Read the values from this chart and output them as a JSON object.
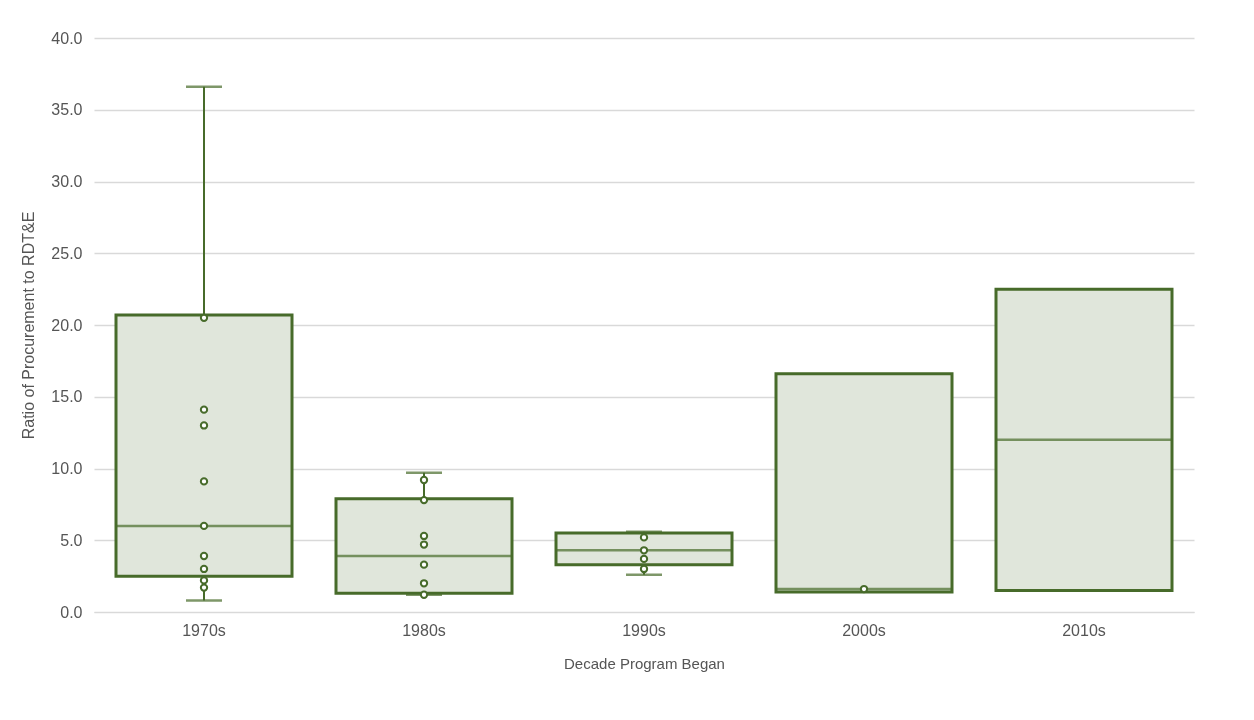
{
  "chart_data": {
    "type": "box",
    "xlabel": "Decade Program Began",
    "ylabel": "Ratio of Procurement to RDT&E",
    "categories": [
      "1970s",
      "1980s",
      "1990s",
      "2000s",
      "2010s"
    ],
    "ylim": [
      0,
      40
    ],
    "yticks": [
      {
        "value": 0,
        "label": "0.0"
      },
      {
        "value": 5,
        "label": "5.0"
      },
      {
        "value": 10,
        "label": "10.0"
      },
      {
        "value": 15,
        "label": "15.0"
      },
      {
        "value": 20,
        "label": "20.0"
      },
      {
        "value": 25,
        "label": "25.0"
      },
      {
        "value": 30,
        "label": "30.0"
      },
      {
        "value": 35,
        "label": "35.0"
      },
      {
        "value": 40,
        "label": "40.0"
      }
    ],
    "grid": "y",
    "series": [
      {
        "color": "#476b2a",
        "boxes": [
          {
            "low": 0.8,
            "q1": 2.5,
            "median": 6.0,
            "q3": 20.7,
            "high": 36.6
          },
          {
            "low": 1.2,
            "q1": 1.3,
            "median": 3.9,
            "q3": 7.9,
            "high": 9.7
          },
          {
            "low": 2.6,
            "q1": 3.3,
            "median": 4.3,
            "q3": 5.5,
            "high": 5.6
          },
          {
            "low": 1.4,
            "q1": 1.4,
            "median": 1.6,
            "q3": 16.6,
            "high": 16.6
          },
          {
            "low": 1.5,
            "q1": 1.5,
            "median": 12.0,
            "q3": 22.5,
            "high": 22.5
          }
        ]
      },
      {
        "type": "scatter",
        "color": "#476b2a",
        "marker": "circle",
        "x": [
          "1970s",
          "1970s",
          "1970s",
          "1970s",
          "1970s",
          "1970s",
          "1970s",
          "1970s",
          "1970s",
          "1980s",
          "1980s",
          "1980s",
          "1980s",
          "1980s",
          "1980s",
          "1980s",
          "1990s",
          "1990s",
          "1990s",
          "1990s",
          "2000s"
        ],
        "values": [
          20.5,
          14.1,
          13.0,
          9.1,
          6.0,
          3.9,
          3.0,
          2.2,
          1.7,
          9.2,
          7.8,
          5.3,
          4.7,
          3.3,
          2.0,
          1.2,
          5.2,
          4.3,
          3.7,
          3.0,
          1.6
        ]
      }
    ]
  }
}
